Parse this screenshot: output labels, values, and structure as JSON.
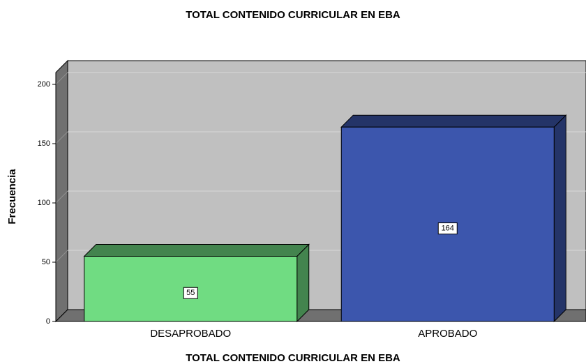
{
  "chart_data": {
    "type": "bar3d",
    "title": "TOTAL CONTENIDO CURRICULAR EN EBA",
    "x_label": "TOTAL CONTENIDO CURRICULAR EN EBA",
    "y_label": "Frecuencia",
    "categories": [
      "DESAPROBADO",
      "APROBADO"
    ],
    "values": [
      55,
      164
    ],
    "colors": [
      "#70dc82",
      "#3c56ad"
    ],
    "ylim": [
      0,
      210
    ],
    "yticks": [
      0,
      50,
      100,
      150,
      200
    ],
    "grid": true
  }
}
